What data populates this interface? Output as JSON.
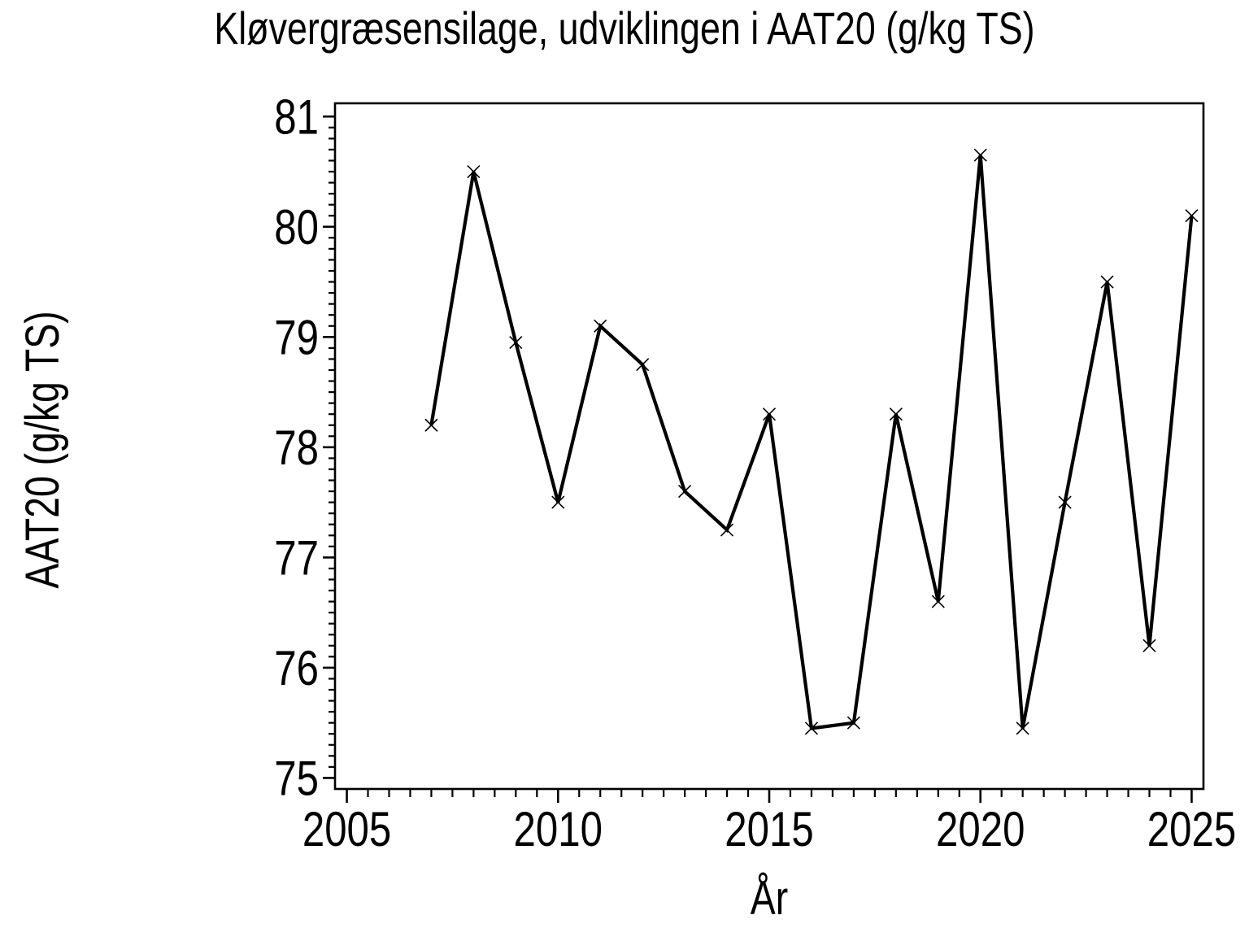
{
  "chart_data": {
    "type": "line",
    "title": "Kløvergræsensilage,  udviklingen  i  AAT20  (g/kg  TS)",
    "xlabel": "År",
    "ylabel": "AAT20  (g/kg  TS)",
    "series": [
      {
        "name": "AAT20",
        "x": [
          2007,
          2008,
          2009,
          2010,
          2011,
          2012,
          2013,
          2014,
          2015,
          2016,
          2017,
          2018,
          2019,
          2020,
          2021,
          2022,
          2023,
          2024,
          2025
        ],
        "y": [
          78.2,
          80.5,
          78.95,
          77.5,
          79.1,
          78.75,
          77.6,
          77.25,
          78.3,
          75.45,
          75.5,
          78.3,
          76.6,
          80.65,
          75.45,
          77.5,
          79.5,
          76.2,
          80.1
        ]
      }
    ],
    "x_ticks": [
      2005,
      2010,
      2015,
      2020,
      2025
    ],
    "y_ticks": [
      75,
      76,
      77,
      78,
      79,
      80,
      81
    ],
    "x_minor_step": 0.5,
    "y_minor_step": 0.1,
    "xlim": [
      2004.72,
      2025.28
    ],
    "ylim": [
      74.9,
      81.12
    ],
    "grid": false,
    "legend": null,
    "marker": "x",
    "line_color": "#000000",
    "axis_color": "#000000",
    "background": "#ffffff"
  }
}
